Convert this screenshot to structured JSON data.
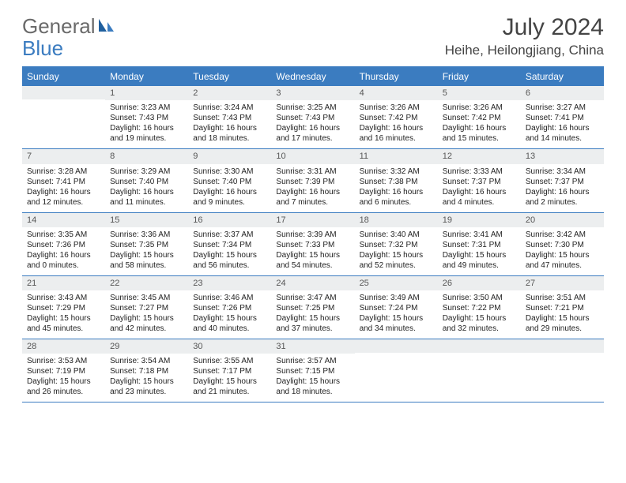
{
  "logo": {
    "text1": "General",
    "text2": "Blue"
  },
  "title": "July 2024",
  "location": "Heihe, Heilongjiang, China",
  "colors": {
    "header_bg": "#3b7cc0",
    "header_text": "#ffffff",
    "daynum_bg": "#eceeef",
    "border": "#3b7cc0",
    "body_text": "#222222",
    "logo_gray": "#6a6a6a",
    "logo_blue": "#3b7cc0"
  },
  "day_names": [
    "Sunday",
    "Monday",
    "Tuesday",
    "Wednesday",
    "Thursday",
    "Friday",
    "Saturday"
  ],
  "weeks": [
    [
      {
        "empty": true
      },
      {
        "num": "1",
        "sunrise": "Sunrise: 3:23 AM",
        "sunset": "Sunset: 7:43 PM",
        "daylight": "Daylight: 16 hours and 19 minutes."
      },
      {
        "num": "2",
        "sunrise": "Sunrise: 3:24 AM",
        "sunset": "Sunset: 7:43 PM",
        "daylight": "Daylight: 16 hours and 18 minutes."
      },
      {
        "num": "3",
        "sunrise": "Sunrise: 3:25 AM",
        "sunset": "Sunset: 7:43 PM",
        "daylight": "Daylight: 16 hours and 17 minutes."
      },
      {
        "num": "4",
        "sunrise": "Sunrise: 3:26 AM",
        "sunset": "Sunset: 7:42 PM",
        "daylight": "Daylight: 16 hours and 16 minutes."
      },
      {
        "num": "5",
        "sunrise": "Sunrise: 3:26 AM",
        "sunset": "Sunset: 7:42 PM",
        "daylight": "Daylight: 16 hours and 15 minutes."
      },
      {
        "num": "6",
        "sunrise": "Sunrise: 3:27 AM",
        "sunset": "Sunset: 7:41 PM",
        "daylight": "Daylight: 16 hours and 14 minutes."
      }
    ],
    [
      {
        "num": "7",
        "sunrise": "Sunrise: 3:28 AM",
        "sunset": "Sunset: 7:41 PM",
        "daylight": "Daylight: 16 hours and 12 minutes."
      },
      {
        "num": "8",
        "sunrise": "Sunrise: 3:29 AM",
        "sunset": "Sunset: 7:40 PM",
        "daylight": "Daylight: 16 hours and 11 minutes."
      },
      {
        "num": "9",
        "sunrise": "Sunrise: 3:30 AM",
        "sunset": "Sunset: 7:40 PM",
        "daylight": "Daylight: 16 hours and 9 minutes."
      },
      {
        "num": "10",
        "sunrise": "Sunrise: 3:31 AM",
        "sunset": "Sunset: 7:39 PM",
        "daylight": "Daylight: 16 hours and 7 minutes."
      },
      {
        "num": "11",
        "sunrise": "Sunrise: 3:32 AM",
        "sunset": "Sunset: 7:38 PM",
        "daylight": "Daylight: 16 hours and 6 minutes."
      },
      {
        "num": "12",
        "sunrise": "Sunrise: 3:33 AM",
        "sunset": "Sunset: 7:37 PM",
        "daylight": "Daylight: 16 hours and 4 minutes."
      },
      {
        "num": "13",
        "sunrise": "Sunrise: 3:34 AM",
        "sunset": "Sunset: 7:37 PM",
        "daylight": "Daylight: 16 hours and 2 minutes."
      }
    ],
    [
      {
        "num": "14",
        "sunrise": "Sunrise: 3:35 AM",
        "sunset": "Sunset: 7:36 PM",
        "daylight": "Daylight: 16 hours and 0 minutes."
      },
      {
        "num": "15",
        "sunrise": "Sunrise: 3:36 AM",
        "sunset": "Sunset: 7:35 PM",
        "daylight": "Daylight: 15 hours and 58 minutes."
      },
      {
        "num": "16",
        "sunrise": "Sunrise: 3:37 AM",
        "sunset": "Sunset: 7:34 PM",
        "daylight": "Daylight: 15 hours and 56 minutes."
      },
      {
        "num": "17",
        "sunrise": "Sunrise: 3:39 AM",
        "sunset": "Sunset: 7:33 PM",
        "daylight": "Daylight: 15 hours and 54 minutes."
      },
      {
        "num": "18",
        "sunrise": "Sunrise: 3:40 AM",
        "sunset": "Sunset: 7:32 PM",
        "daylight": "Daylight: 15 hours and 52 minutes."
      },
      {
        "num": "19",
        "sunrise": "Sunrise: 3:41 AM",
        "sunset": "Sunset: 7:31 PM",
        "daylight": "Daylight: 15 hours and 49 minutes."
      },
      {
        "num": "20",
        "sunrise": "Sunrise: 3:42 AM",
        "sunset": "Sunset: 7:30 PM",
        "daylight": "Daylight: 15 hours and 47 minutes."
      }
    ],
    [
      {
        "num": "21",
        "sunrise": "Sunrise: 3:43 AM",
        "sunset": "Sunset: 7:29 PM",
        "daylight": "Daylight: 15 hours and 45 minutes."
      },
      {
        "num": "22",
        "sunrise": "Sunrise: 3:45 AM",
        "sunset": "Sunset: 7:27 PM",
        "daylight": "Daylight: 15 hours and 42 minutes."
      },
      {
        "num": "23",
        "sunrise": "Sunrise: 3:46 AM",
        "sunset": "Sunset: 7:26 PM",
        "daylight": "Daylight: 15 hours and 40 minutes."
      },
      {
        "num": "24",
        "sunrise": "Sunrise: 3:47 AM",
        "sunset": "Sunset: 7:25 PM",
        "daylight": "Daylight: 15 hours and 37 minutes."
      },
      {
        "num": "25",
        "sunrise": "Sunrise: 3:49 AM",
        "sunset": "Sunset: 7:24 PM",
        "daylight": "Daylight: 15 hours and 34 minutes."
      },
      {
        "num": "26",
        "sunrise": "Sunrise: 3:50 AM",
        "sunset": "Sunset: 7:22 PM",
        "daylight": "Daylight: 15 hours and 32 minutes."
      },
      {
        "num": "27",
        "sunrise": "Sunrise: 3:51 AM",
        "sunset": "Sunset: 7:21 PM",
        "daylight": "Daylight: 15 hours and 29 minutes."
      }
    ],
    [
      {
        "num": "28",
        "sunrise": "Sunrise: 3:53 AM",
        "sunset": "Sunset: 7:19 PM",
        "daylight": "Daylight: 15 hours and 26 minutes."
      },
      {
        "num": "29",
        "sunrise": "Sunrise: 3:54 AM",
        "sunset": "Sunset: 7:18 PM",
        "daylight": "Daylight: 15 hours and 23 minutes."
      },
      {
        "num": "30",
        "sunrise": "Sunrise: 3:55 AM",
        "sunset": "Sunset: 7:17 PM",
        "daylight": "Daylight: 15 hours and 21 minutes."
      },
      {
        "num": "31",
        "sunrise": "Sunrise: 3:57 AM",
        "sunset": "Sunset: 7:15 PM",
        "daylight": "Daylight: 15 hours and 18 minutes."
      },
      {
        "empty": true
      },
      {
        "empty": true
      },
      {
        "empty": true
      }
    ]
  ]
}
